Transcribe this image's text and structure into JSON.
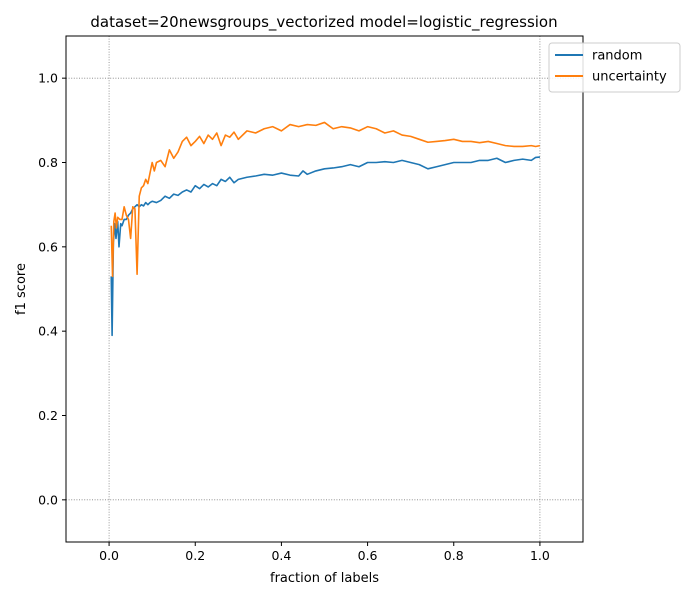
{
  "chart_data": {
    "type": "line",
    "title": "dataset=20newsgroups_vectorized model=logistic_regression",
    "xlabel": "fraction of labels",
    "ylabel": "f1 score",
    "xlim": [
      -0.1,
      1.1
    ],
    "ylim": [
      -0.1,
      1.1
    ],
    "xticks": [
      0.0,
      0.2,
      0.4,
      0.6,
      0.8,
      1.0
    ],
    "xtick_labels": [
      "0.0",
      "0.2",
      "0.4",
      "0.6",
      "0.8",
      "1.0"
    ],
    "yticks": [
      0.0,
      0.2,
      0.4,
      0.6,
      0.8,
      1.0
    ],
    "ytick_labels": [
      "0.0",
      "0.2",
      "0.4",
      "0.6",
      "0.8",
      "1.0"
    ],
    "reference_lines": {
      "x": [
        0.0,
        1.0
      ],
      "y": [
        0.0,
        1.0
      ],
      "style": "dotted gray"
    },
    "grid": false,
    "legend": {
      "placement": "upper right, outside axes"
    },
    "series": [
      {
        "name": "random",
        "color": "#1f77b4",
        "x": [
          0.005,
          0.007,
          0.01,
          0.013,
          0.016,
          0.02,
          0.023,
          0.027,
          0.03,
          0.035,
          0.04,
          0.045,
          0.05,
          0.055,
          0.06,
          0.065,
          0.07,
          0.075,
          0.08,
          0.085,
          0.09,
          0.095,
          0.1,
          0.11,
          0.12,
          0.13,
          0.14,
          0.15,
          0.16,
          0.17,
          0.18,
          0.19,
          0.2,
          0.21,
          0.22,
          0.23,
          0.24,
          0.25,
          0.26,
          0.27,
          0.28,
          0.29,
          0.3,
          0.32,
          0.34,
          0.36,
          0.38,
          0.4,
          0.42,
          0.44,
          0.45,
          0.46,
          0.48,
          0.5,
          0.52,
          0.54,
          0.56,
          0.58,
          0.6,
          0.62,
          0.64,
          0.66,
          0.68,
          0.7,
          0.72,
          0.74,
          0.76,
          0.78,
          0.8,
          0.82,
          0.84,
          0.86,
          0.88,
          0.9,
          0.92,
          0.94,
          0.96,
          0.98,
          0.99,
          1.0
        ],
        "y": [
          0.53,
          0.39,
          0.61,
          0.655,
          0.62,
          0.66,
          0.6,
          0.655,
          0.65,
          0.665,
          0.665,
          0.675,
          0.68,
          0.69,
          0.695,
          0.7,
          0.695,
          0.7,
          0.697,
          0.705,
          0.7,
          0.705,
          0.708,
          0.705,
          0.71,
          0.72,
          0.715,
          0.725,
          0.722,
          0.73,
          0.735,
          0.73,
          0.745,
          0.738,
          0.748,
          0.742,
          0.75,
          0.745,
          0.76,
          0.755,
          0.765,
          0.752,
          0.76,
          0.765,
          0.768,
          0.772,
          0.77,
          0.775,
          0.77,
          0.768,
          0.78,
          0.772,
          0.78,
          0.785,
          0.787,
          0.79,
          0.795,
          0.79,
          0.8,
          0.8,
          0.802,
          0.8,
          0.805,
          0.8,
          0.795,
          0.785,
          0.79,
          0.795,
          0.8,
          0.8,
          0.8,
          0.805,
          0.805,
          0.81,
          0.8,
          0.805,
          0.808,
          0.805,
          0.812,
          0.813
        ]
      },
      {
        "name": "uncertainty",
        "color": "#ff7f0e",
        "x": [
          0.005,
          0.008,
          0.011,
          0.014,
          0.017,
          0.02,
          0.025,
          0.03,
          0.035,
          0.04,
          0.045,
          0.05,
          0.055,
          0.06,
          0.065,
          0.07,
          0.075,
          0.08,
          0.085,
          0.09,
          0.095,
          0.1,
          0.105,
          0.11,
          0.12,
          0.13,
          0.14,
          0.15,
          0.16,
          0.17,
          0.18,
          0.19,
          0.2,
          0.21,
          0.22,
          0.23,
          0.24,
          0.25,
          0.26,
          0.27,
          0.28,
          0.29,
          0.3,
          0.32,
          0.34,
          0.36,
          0.38,
          0.4,
          0.42,
          0.44,
          0.46,
          0.48,
          0.5,
          0.52,
          0.54,
          0.56,
          0.58,
          0.6,
          0.62,
          0.64,
          0.66,
          0.68,
          0.7,
          0.72,
          0.74,
          0.76,
          0.78,
          0.8,
          0.82,
          0.84,
          0.86,
          0.88,
          0.9,
          0.92,
          0.94,
          0.96,
          0.98,
          0.99,
          1.0
        ],
        "y": [
          0.65,
          0.53,
          0.66,
          0.68,
          0.645,
          0.67,
          0.665,
          0.665,
          0.695,
          0.675,
          0.665,
          0.62,
          0.695,
          0.69,
          0.535,
          0.72,
          0.74,
          0.745,
          0.76,
          0.75,
          0.775,
          0.8,
          0.78,
          0.8,
          0.805,
          0.79,
          0.83,
          0.81,
          0.825,
          0.85,
          0.86,
          0.84,
          0.85,
          0.862,
          0.845,
          0.865,
          0.855,
          0.87,
          0.84,
          0.865,
          0.86,
          0.872,
          0.855,
          0.875,
          0.87,
          0.88,
          0.885,
          0.875,
          0.89,
          0.885,
          0.89,
          0.888,
          0.895,
          0.88,
          0.885,
          0.882,
          0.875,
          0.885,
          0.88,
          0.87,
          0.875,
          0.865,
          0.862,
          0.855,
          0.848,
          0.85,
          0.852,
          0.855,
          0.85,
          0.85,
          0.847,
          0.85,
          0.845,
          0.84,
          0.838,
          0.838,
          0.84,
          0.838,
          0.84
        ]
      }
    ]
  }
}
